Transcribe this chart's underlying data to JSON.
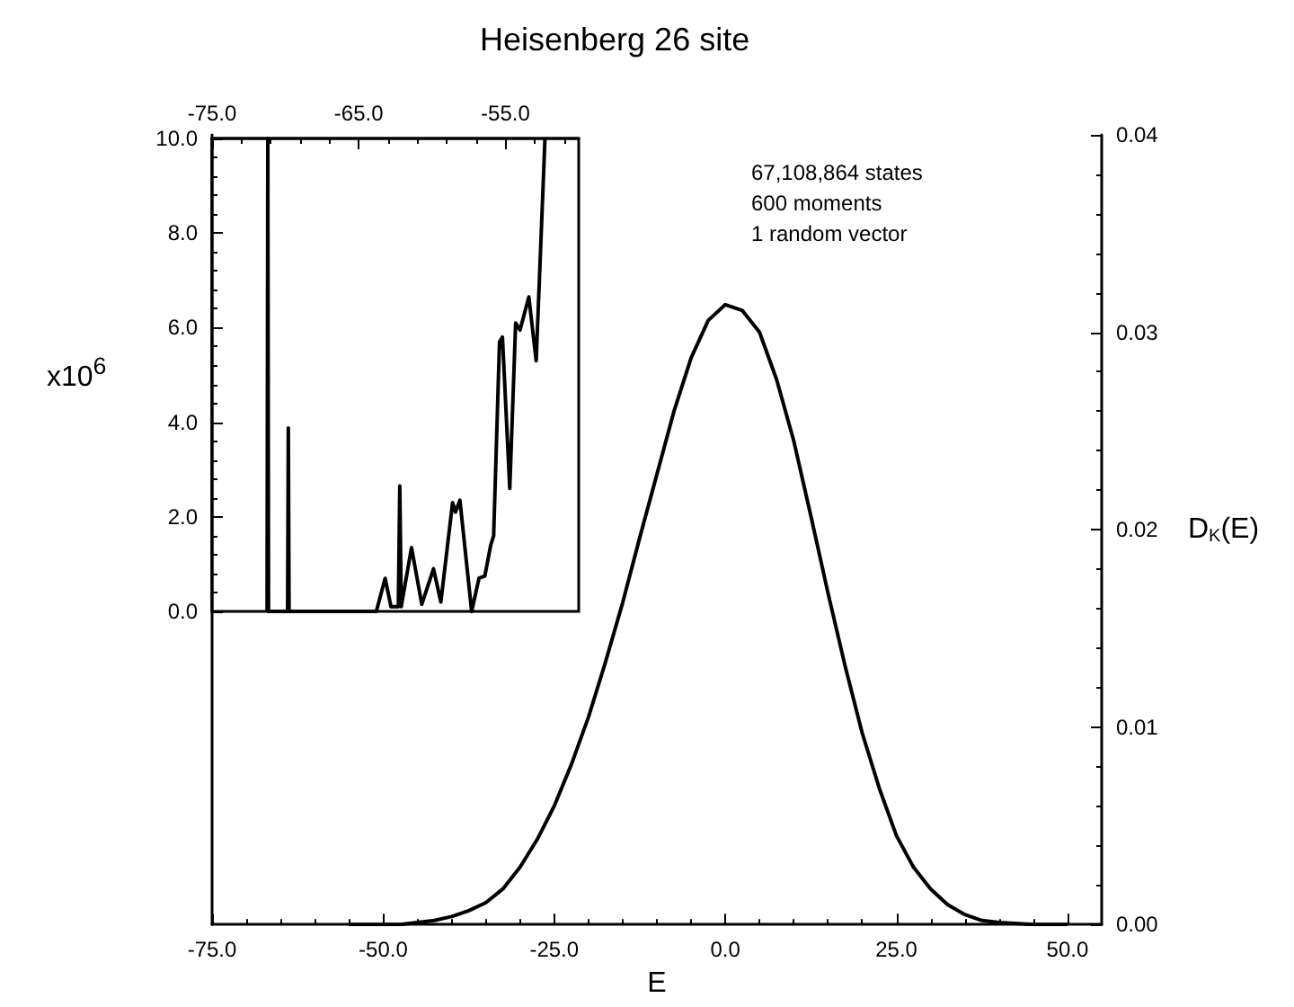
{
  "chart_data": [
    {
      "type": "line",
      "title": "Heisenberg 26 site",
      "xlabel": "E",
      "y2label": "D$_{K}$(E)",
      "annotations": [
        "67,108,864 states",
        "600 moments",
        "1 random vector"
      ],
      "x": [
        -55,
        -50,
        -47.5,
        -45,
        -42.5,
        -40,
        -37.5,
        -35,
        -32.5,
        -30,
        -27.5,
        -25,
        -22.5,
        -20,
        -17.5,
        -15,
        -12.5,
        -10,
        -7.5,
        -5,
        -2.5,
        0,
        2.5,
        5,
        7.5,
        10,
        12.5,
        15,
        17.5,
        20,
        22.5,
        25,
        27.5,
        30,
        32.5,
        35,
        37.5,
        40,
        45,
        50
      ],
      "series": [
        {
          "color": "#000000",
          "axis": "y2",
          "values": [
            0,
            0,
            0,
            0.0001,
            0.0002,
            0.0004,
            0.0007,
            0.0011,
            0.0018,
            0.0029,
            0.0043,
            0.006,
            0.0081,
            0.0105,
            0.0133,
            0.0163,
            0.0196,
            0.0228,
            0.026,
            0.0287,
            0.0306,
            0.0314,
            0.0311,
            0.03,
            0.0276,
            0.0245,
            0.0207,
            0.0168,
            0.0131,
            0.0097,
            0.0069,
            0.0045,
            0.0029,
            0.0018,
            0.001,
            0.0005,
            0.0002,
            0.0001,
            0,
            0
          ]
        }
      ],
      "xlim": [
        -75,
        55
      ],
      "xticks": [
        {
          "value": -75,
          "label": "-75.0"
        },
        {
          "value": -50,
          "label": "-50.0"
        },
        {
          "value": -25,
          "label": "-25.0"
        },
        {
          "value": 0,
          "label": "0.0"
        },
        {
          "value": 25,
          "label": "25.0"
        },
        {
          "value": 50,
          "label": "50.0"
        }
      ],
      "y2lim": [
        0,
        0.04
      ],
      "y2ticks": [
        {
          "value": 0,
          "label": "0.00"
        },
        0.01,
        0.02,
        0.03,
        0.04
      ],
      "grid": false,
      "marker": "none",
      "line_style": "solid"
    },
    {
      "type": "line",
      "ylabel": "x10$^{6}$",
      "x": [
        -71.25,
        -71.2,
        -71.15,
        -69.85,
        -69.8,
        -69.75,
        -63.8,
        -63.2,
        -62.8,
        -62.3,
        -62.2,
        -62.1,
        -61.4,
        -60.7,
        -59.9,
        -59.4,
        -58.6,
        -58.4,
        -58.1,
        -57.3,
        -56.8,
        -56.4,
        -56,
        -55.8,
        -55.4,
        -55.2,
        -54.7,
        -54.3,
        -54,
        -53.4,
        -52.9,
        -52.3
      ],
      "series": [
        {
          "color": "#000000",
          "values": [
            0,
            10,
            0,
            0,
            3.88,
            0,
            0,
            0.7,
            0.1,
            0.1,
            2.65,
            0.1,
            1.35,
            0.15,
            0.9,
            0.2,
            2.3,
            2.1,
            2.35,
            0,
            0.7,
            0.75,
            1.4,
            1.6,
            5.7,
            5.8,
            2.6,
            6.1,
            5.95,
            6.65,
            5.3,
            10
          ]
        }
      ],
      "xlim": [
        -75,
        -50
      ],
      "xticks": [
        {
          "value": -75,
          "label": "-75.0"
        },
        {
          "value": -65,
          "label": "-65.0"
        },
        {
          "value": -55,
          "label": "-55.0"
        }
      ],
      "ylim": [
        0,
        10
      ],
      "yticks": [
        {
          "value": 0,
          "label": "0.0"
        },
        {
          "value": 2,
          "label": "2.0"
        },
        {
          "value": 4,
          "label": "4.0"
        },
        {
          "value": 6,
          "label": "6.0"
        },
        {
          "value": 8,
          "label": "8.0"
        },
        {
          "value": 10,
          "label": "10.0"
        }
      ],
      "grid": false,
      "marker": "none",
      "line_style": "solid"
    }
  ]
}
